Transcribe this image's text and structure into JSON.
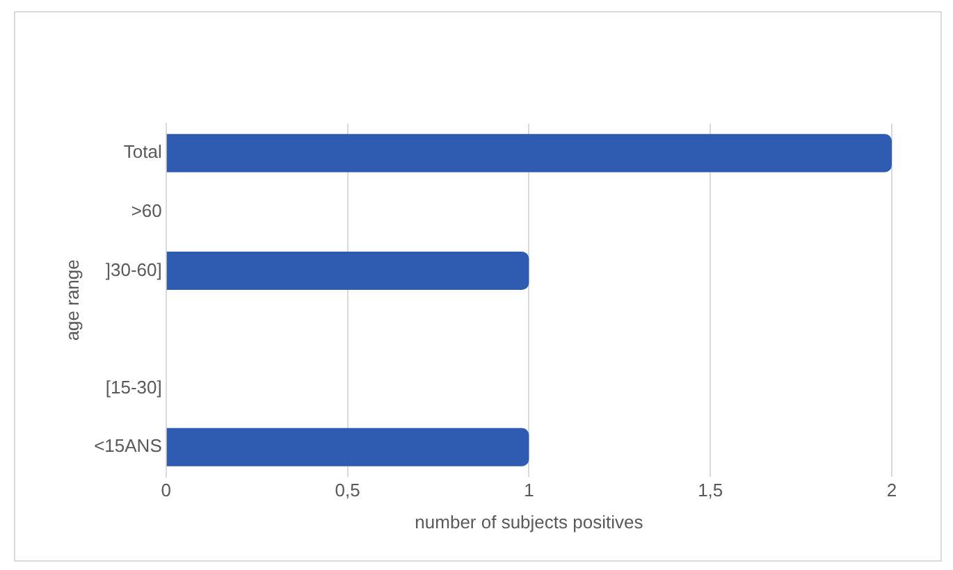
{
  "chart_data": {
    "type": "bar",
    "orientation": "horizontal",
    "xlabel": "number of subjects positives",
    "ylabel": "age range",
    "categories": [
      "Total",
      ">60",
      "]30-60]",
      null,
      "[15-30]",
      "<15ANS"
    ],
    "values": [
      2,
      0,
      1,
      null,
      0,
      1
    ],
    "color": "#2f5cb0",
    "xlim": [
      0,
      2
    ],
    "xticks": [
      0,
      {
        "value": 0.5,
        "label": "0,5"
      },
      1,
      {
        "value": 1.5,
        "label": "1,5"
      },
      2
    ],
    "grid": "x"
  }
}
